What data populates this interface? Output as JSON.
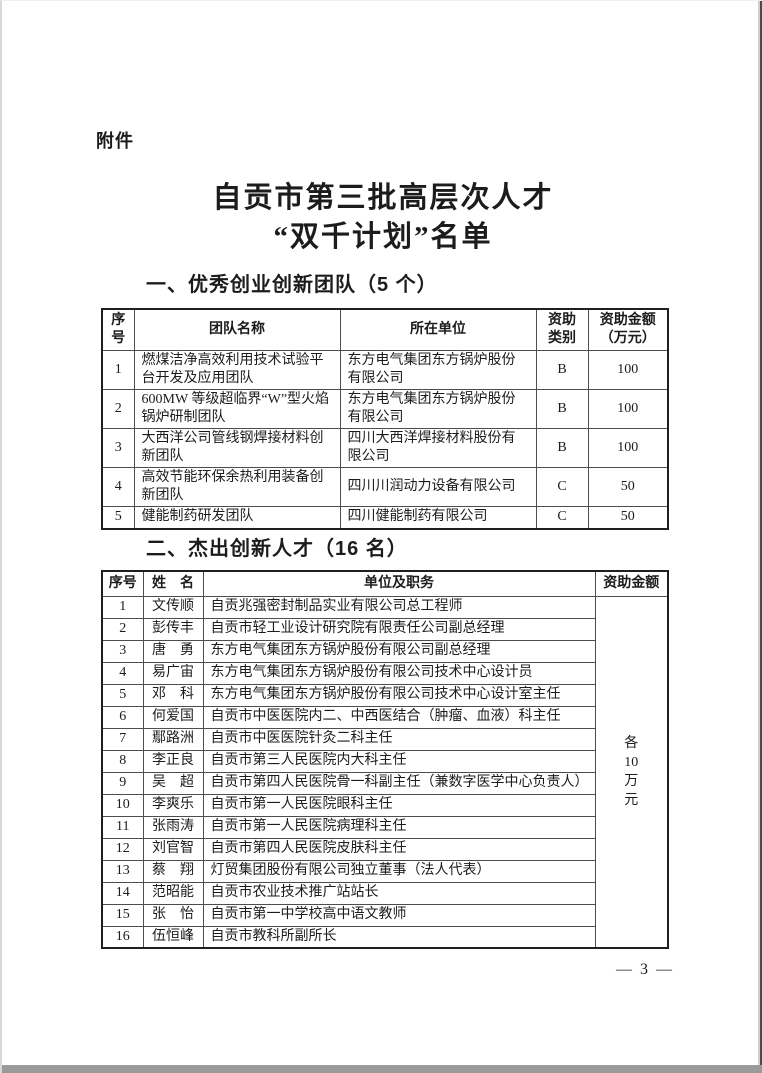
{
  "page": {
    "attachment_label": "附件",
    "title_line1": "自贡市第三批高层次人才",
    "title_line2": "“双千计划”名单",
    "page_number": "— 3 —"
  },
  "section1": {
    "heading": "一、优秀创业创新团队（5 个）",
    "table": {
      "headers": {
        "index": "序\n号",
        "team": "团队名称",
        "org": "所在单位",
        "category": "资助\n类别",
        "amount": "资助金额\n（万元）"
      },
      "rows": [
        {
          "index": "1",
          "team": "燃煤洁净高效利用技术试验平台开发及应用团队",
          "org": "东方电气集团东方锅炉股份有限公司",
          "category": "B",
          "amount": "100"
        },
        {
          "index": "2",
          "team": "600MW 等级超临界“W”型火焰锅炉研制团队",
          "org": "东方电气集团东方锅炉股份有限公司",
          "category": "B",
          "amount": "100"
        },
        {
          "index": "3",
          "team": "大西洋公司管线钢焊接材料创新团队",
          "org": "四川大西洋焊接材料股份有限公司",
          "category": "B",
          "amount": "100"
        },
        {
          "index": "4",
          "team": "高效节能环保余热利用装备创新团队",
          "org": "四川川润动力设备有限公司",
          "category": "C",
          "amount": "50"
        },
        {
          "index": "5",
          "team": "健能制药研发团队",
          "org": "四川健能制药有限公司",
          "category": "C",
          "amount": "50"
        }
      ]
    }
  },
  "section2": {
    "heading": "二、杰出创新人才（16 名）",
    "table": {
      "headers": {
        "index": "序号",
        "name": "姓　名",
        "job": "单位及职务",
        "amount": "资助金额"
      },
      "amount_note": "各\n10\n万\n元",
      "rows": [
        {
          "index": "1",
          "name": "文传顺",
          "job": "自贡兆强密封制品实业有限公司总工程师"
        },
        {
          "index": "2",
          "name": "彭传丰",
          "job": "自贡市轻工业设计研究院有限责任公司副总经理"
        },
        {
          "index": "3",
          "name": "唐　勇",
          "job": "东方电气集团东方锅炉股份有限公司副总经理"
        },
        {
          "index": "4",
          "name": "易广宙",
          "job": "东方电气集团东方锅炉股份有限公司技术中心设计员"
        },
        {
          "index": "5",
          "name": "邓　科",
          "job": "东方电气集团东方锅炉股份有限公司技术中心设计室主任"
        },
        {
          "index": "6",
          "name": "何爱国",
          "job": "自贡市中医医院内二、中西医结合（肿瘤、血液）科主任"
        },
        {
          "index": "7",
          "name": "鄢路洲",
          "job": "自贡市中医医院针灸二科主任"
        },
        {
          "index": "8",
          "name": "李正良",
          "job": "自贡市第三人民医院内大科主任"
        },
        {
          "index": "9",
          "name": "吴　超",
          "job": "自贡市第四人民医院骨一科副主任（兼数字医学中心负责人）"
        },
        {
          "index": "10",
          "name": "李爽乐",
          "job": "自贡市第一人民医院眼科主任"
        },
        {
          "index": "11",
          "name": "张雨涛",
          "job": "自贡市第一人民医院病理科主任"
        },
        {
          "index": "12",
          "name": "刘官智",
          "job": "自贡市第四人民医院皮肤科主任"
        },
        {
          "index": "13",
          "name": "蔡　翔",
          "job": "灯贸集团股份有限公司独立董事（法人代表）"
        },
        {
          "index": "14",
          "name": "范昭能",
          "job": "自贡市农业技术推广站站长"
        },
        {
          "index": "15",
          "name": "张　怡",
          "job": "自贡市第一中学校高中语文教师"
        },
        {
          "index": "16",
          "name": "伍恒峰",
          "job": "自贡市教科所副所长"
        }
      ]
    }
  }
}
